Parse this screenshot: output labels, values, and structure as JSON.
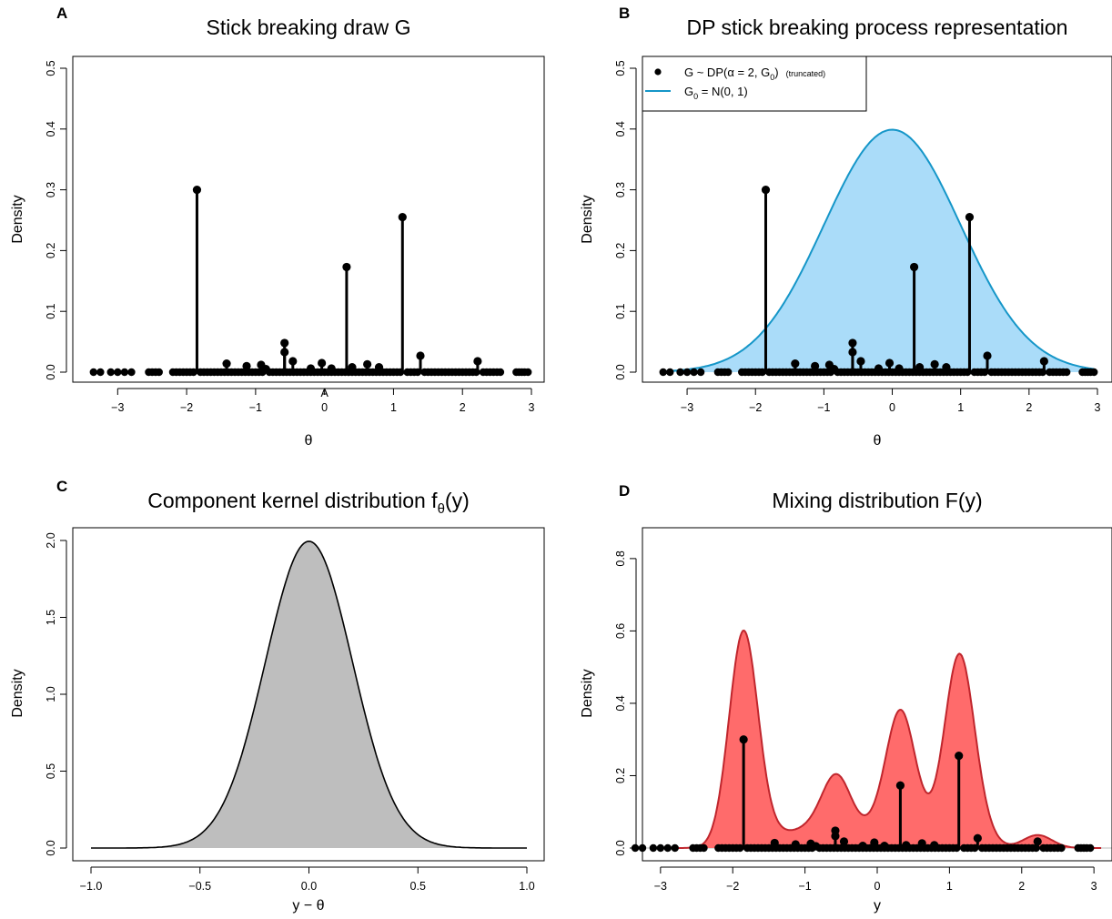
{
  "colors": {
    "g0_fill": "#aadcf9",
    "g0_line": "#1596c8",
    "kernel_fill": "#bebebe",
    "mix_fill": "#ff6b6b",
    "mix_line": "#c0262d",
    "stick": "#000000"
  },
  "atoms": {
    "main": [
      {
        "x": -1.85,
        "w": 0.3
      },
      {
        "x": 1.13,
        "w": 0.255
      },
      {
        "x": 0.32,
        "w": 0.173
      },
      {
        "x": -0.58,
        "w": 0.048
      },
      {
        "x": -0.58,
        "w": 0.033
      },
      {
        "x": 1.39,
        "w": 0.027
      },
      {
        "x": 2.22,
        "w": 0.018
      },
      {
        "x": -1.42,
        "w": 0.014
      },
      {
        "x": -0.46,
        "w": 0.018
      },
      {
        "x": -0.04,
        "w": 0.015
      },
      {
        "x": -1.13,
        "w": 0.01
      },
      {
        "x": -0.92,
        "w": 0.012
      },
      {
        "x": -0.2,
        "w": 0.006
      },
      {
        "x": 0.62,
        "w": 0.013
      },
      {
        "x": 0.79,
        "w": 0.008
      },
      {
        "x": 0.4,
        "w": 0.008
      },
      {
        "x": 0.1,
        "w": 0.006
      },
      {
        "x": -0.85,
        "w": 0.005
      }
    ],
    "zero_atoms_x": [
      -3.35,
      -3.25,
      -3.1,
      -3.0,
      -2.9,
      -2.8,
      -2.55,
      -2.5,
      -2.45,
      -2.4,
      -2.2,
      -2.15,
      -2.1,
      -2.05,
      -2.0,
      -1.95,
      -1.9,
      -1.8,
      -1.75,
      -1.7,
      -1.65,
      -1.6,
      -1.55,
      -1.5,
      -1.45,
      -1.4,
      -1.35,
      -1.3,
      -1.25,
      -1.2,
      -1.15,
      -1.1,
      -1.05,
      -1.0,
      -0.95,
      -0.9,
      -0.8,
      -0.75,
      -0.7,
      -0.65,
      -0.6,
      -0.55,
      -0.5,
      -0.45,
      -0.4,
      -0.35,
      -0.3,
      -0.25,
      -0.2,
      -0.15,
      -0.1,
      -0.05,
      0.0,
      0.05,
      0.1,
      0.15,
      0.2,
      0.25,
      0.3,
      0.35,
      0.4,
      0.45,
      0.5,
      0.55,
      0.6,
      0.65,
      0.7,
      0.75,
      0.8,
      0.85,
      0.9,
      0.95,
      1.0,
      1.05,
      1.1,
      1.2,
      1.25,
      1.3,
      1.35,
      1.45,
      1.5,
      1.55,
      1.6,
      1.65,
      1.7,
      1.75,
      1.8,
      1.85,
      1.9,
      1.95,
      2.0,
      2.05,
      2.1,
      2.15,
      2.2,
      2.3,
      2.35,
      2.4,
      2.45,
      2.5,
      2.55,
      2.78,
      2.82,
      2.86,
      2.9,
      2.95
    ]
  },
  "kernel_sd": 0.2,
  "chart_data": [
    {
      "id": "A",
      "panel_label": "A",
      "type": "scatter",
      "title": "Stick breaking draw G",
      "xlabel": "θ",
      "ylabel": "Density",
      "xlim": [
        -3.4,
        3.0
      ],
      "ylim": [
        0,
        0.5
      ],
      "xticks": [
        -3,
        -2,
        -1,
        0,
        1,
        2,
        3
      ],
      "xtick_labels": [
        "−3",
        "−2",
        "−1",
        "0",
        "1",
        "2",
        "3"
      ],
      "yticks": [
        0,
        0.1,
        0.2,
        0.3,
        0.4,
        0.5
      ],
      "ytick_labels": [
        "0.0",
        "0.1",
        "0.2",
        "0.3",
        "0.4",
        "0.5"
      ],
      "annotation": "A",
      "annotation_x": 0.0,
      "series": [
        {
          "values_ref": "atoms"
        }
      ]
    },
    {
      "id": "B",
      "panel_label": "B",
      "type": "area",
      "title": "DP stick breaking process representation",
      "xlabel": "θ",
      "ylabel": "Density",
      "xlim": [
        -3.4,
        3.0
      ],
      "ylim": [
        0,
        0.5
      ],
      "xticks": [
        -3,
        -2,
        -1,
        0,
        1,
        2,
        3
      ],
      "xtick_labels": [
        "−3",
        "−2",
        "−1",
        "0",
        "1",
        "2",
        "3"
      ],
      "yticks": [
        0,
        0.1,
        0.2,
        0.3,
        0.4,
        0.5
      ],
      "ytick_labels": [
        "0.0",
        "0.1",
        "0.2",
        "0.3",
        "0.4",
        "0.5"
      ],
      "legend_position": "top-left",
      "legend": {
        "g_main": "G ~ DP(α = 2, G",
        "g_sub": "0",
        "g_close": ")",
        "g_note": "(truncated)",
        "g0_main": "G",
        "g0_sub": "0",
        "g0_rest": " = N(0, 1)"
      },
      "series": [
        {
          "name": "G0 = N(0, 1)",
          "curve": "normal",
          "mean": 0,
          "sd": 1
        },
        {
          "values_ref": "atoms"
        }
      ]
    },
    {
      "id": "C",
      "panel_label": "C",
      "type": "area",
      "title_main": "Component kernel distribution f",
      "title_sub": "θ",
      "title_rest": "(y)",
      "xlabel": "y − θ",
      "ylabel": "Density",
      "xlim": [
        -1.0,
        1.0
      ],
      "ylim": [
        0,
        2.0
      ],
      "xticks": [
        -1.0,
        -0.5,
        0.0,
        0.5,
        1.0
      ],
      "xtick_labels": [
        "−1.0",
        "−0.5",
        "0.0",
        "0.5",
        "1.0"
      ],
      "yticks": [
        0,
        0.5,
        1.0,
        1.5,
        2.0
      ],
      "ytick_labels": [
        "0.0",
        "0.5",
        "1.0",
        "1.5",
        "2.0"
      ],
      "series": [
        {
          "curve": "normal",
          "mean": 0,
          "sd": 0.2
        }
      ]
    },
    {
      "id": "D",
      "panel_label": "D",
      "type": "area",
      "title": "Mixing distribution  F(y)",
      "xlabel": "y",
      "ylabel": "Density",
      "xlim": [
        -3.25,
        3.25
      ],
      "ylim": [
        0,
        0.85
      ],
      "xticks": [
        -3,
        -2,
        -1,
        0,
        1,
        2,
        3
      ],
      "xtick_labels": [
        "−3",
        "−2",
        "−1",
        "0",
        "1",
        "2",
        "3"
      ],
      "yticks": [
        0,
        0.2,
        0.4,
        0.6,
        0.8
      ],
      "ytick_labels": [
        "0.0",
        "0.2",
        "0.4",
        "0.6",
        "0.8"
      ],
      "series": [
        {
          "curve": "mixture",
          "components_ref": "atoms",
          "sd": 0.2
        },
        {
          "values_ref": "atoms"
        }
      ]
    }
  ]
}
